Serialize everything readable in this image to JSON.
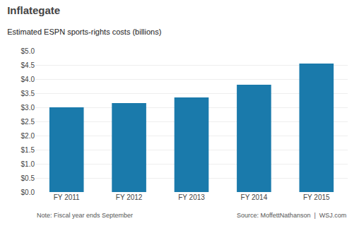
{
  "chart_data": {
    "type": "bar",
    "title": "Inflategate",
    "subtitle": "Estimated ESPN sports-rights costs (billions)",
    "categories": [
      "FY 2011",
      "FY 2012",
      "FY 2013",
      "FY 2014",
      "FY 2015"
    ],
    "values": [
      3.0,
      3.15,
      3.35,
      3.8,
      4.55
    ],
    "color": "#1a7aab",
    "ylim": [
      0,
      5.0
    ],
    "yticks": [
      {
        "value": 0.0,
        "label": "$0.0"
      },
      {
        "value": 0.5,
        "label": "$0.5"
      },
      {
        "value": 1.0,
        "label": "$1.0"
      },
      {
        "value": 1.5,
        "label": "$1.5"
      },
      {
        "value": 2.0,
        "label": "$2.0"
      },
      {
        "value": 2.5,
        "label": "$2.5"
      },
      {
        "value": 3.0,
        "label": "$3.0"
      },
      {
        "value": 3.5,
        "label": "$3.5"
      },
      {
        "value": 4.0,
        "label": "$4.0"
      },
      {
        "value": 4.5,
        "label": "$4.5"
      },
      {
        "value": 5.0,
        "label": "$5.0"
      }
    ],
    "grid": true,
    "annotations": [
      "Note: Fiscal year ends September",
      "Source: MoffettNathanson  |  WSJ.com"
    ]
  }
}
